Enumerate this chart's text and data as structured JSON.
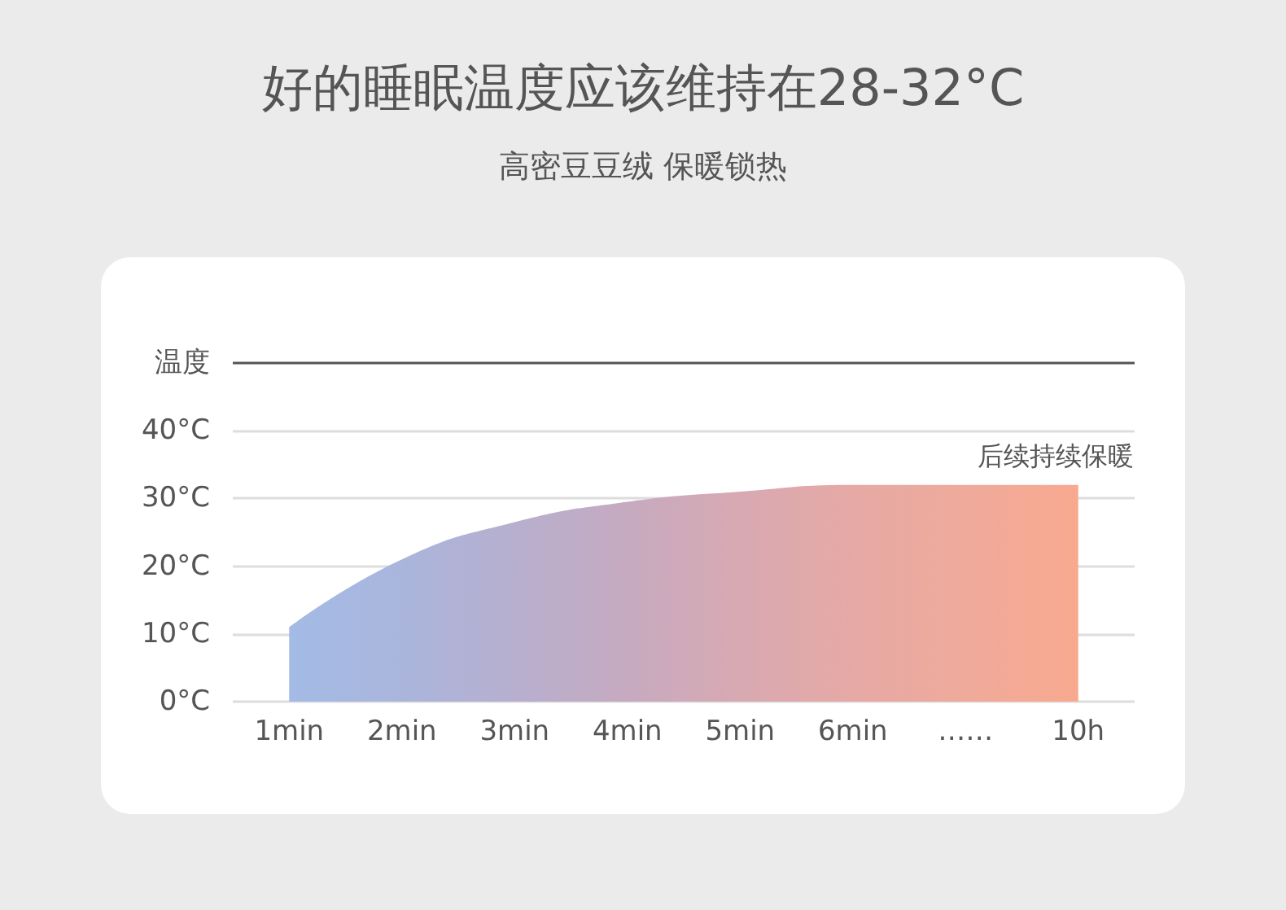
{
  "chart_data": {
    "type": "area",
    "title": "好的睡眠温度应该维持在28-32°C",
    "subtitle": "高密豆豆绒 保暖锁热",
    "ylabel": "温度",
    "categories": [
      "1min",
      "2min",
      "3min",
      "4min",
      "5min",
      "6min",
      "……",
      "10h"
    ],
    "series": [
      {
        "values": [
          11,
          21,
          26.5,
          29.5,
          31,
          32,
          32,
          32
        ],
        "colors": [
          "#a3bbe5",
          "#aab5dc",
          "#b7afcf",
          "#c6aac0",
          "#d8a9b2",
          "#e6a9a5",
          "#efaa9b",
          "#f8a98f"
        ]
      }
    ],
    "ylim": [
      0,
      50
    ],
    "yticks": [
      {
        "value": 0,
        "label": "0°C"
      },
      {
        "value": 10,
        "label": "10°C"
      },
      {
        "value": 20,
        "label": "20°C"
      },
      {
        "value": 30,
        "label": "30°C"
      },
      {
        "value": 40,
        "label": "40°C"
      },
      {
        "value": 50,
        "label": null
      }
    ],
    "annotations": [
      {
        "text": "后续持续保暖",
        "x": "10h",
        "y": 32
      }
    ],
    "grid": "y",
    "marker": "none"
  }
}
